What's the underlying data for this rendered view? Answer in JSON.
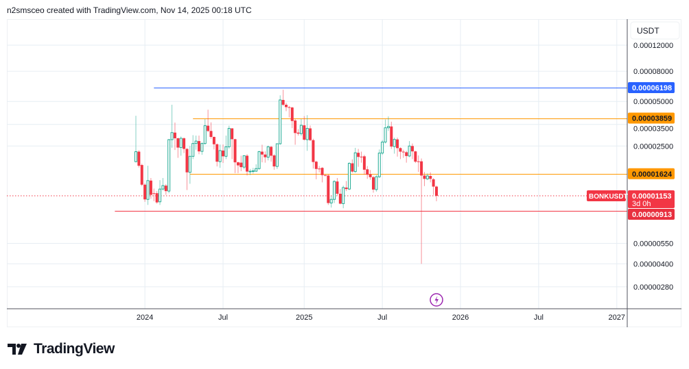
{
  "header": {
    "text": "n2smsceo created with TradingView.com, Nov 14, 2025 00:18 UTC"
  },
  "currency_button": "USDT",
  "symbol_label": "BONKUSDT",
  "countdown": "3d 0h",
  "logo_text": "TradingView",
  "colors": {
    "up": "#22ab94",
    "down": "#f23645",
    "blue": "#2962ff",
    "orange": "#ff9800",
    "red_line": "#f23645",
    "grid": "#e6edf3",
    "event": "#9c27b0"
  },
  "chart_data": {
    "type": "candlestick",
    "interval": "weekly",
    "scale": "log",
    "value_unit": "micro-USDT (x1e-6)",
    "ylim": [
      2.5,
      140
    ],
    "price_ticks": [
      "0.00012000",
      "0.00008000",
      "0.00005000",
      "0.00003500",
      "0.00002500",
      "0.00000550",
      "0.00000400",
      "0.00000280"
    ],
    "price_tick_values": [
      120,
      80,
      50,
      35,
      25,
      5.5,
      4.0,
      2.8
    ],
    "time_ticks": [
      "2024",
      "Jul",
      "2025",
      "Jul",
      "2026",
      "Jul",
      "2027"
    ],
    "time_tick_week_index": [
      3,
      29,
      56,
      82,
      108,
      134,
      160
    ],
    "levels": [
      {
        "label": "0.00006198",
        "value": 61.98,
        "color": "blue",
        "start_index": 6
      },
      {
        "label": "0.00003859",
        "value": 38.59,
        "color": "orange",
        "start_index": 19
      },
      {
        "label": "0.00001624",
        "value": 16.24,
        "color": "orange",
        "start_index": 18
      },
      {
        "label": "0.00000913",
        "value": 9.13,
        "color": "red_line",
        "start_index": -7
      }
    ],
    "last_price": {
      "label": "0.00001153",
      "value": 11.53
    },
    "candles": [
      [
        19.6,
        40.0,
        19.4,
        22.9
      ],
      [
        22.9,
        23.4,
        17.9,
        18.4
      ],
      [
        18.6,
        19.0,
        13.4,
        13.7
      ],
      [
        13.7,
        14.0,
        10.5,
        10.9
      ],
      [
        10.9,
        18.4,
        10.0,
        14.6
      ],
      [
        14.6,
        15.2,
        11.0,
        11.7
      ],
      [
        12.0,
        12.9,
        10.6,
        11.9
      ],
      [
        12.0,
        12.4,
        10.2,
        10.4
      ],
      [
        10.5,
        14.7,
        10.0,
        12.8
      ],
      [
        12.8,
        15.2,
        12.5,
        13.5
      ],
      [
        13.5,
        13.8,
        11.7,
        12.4
      ],
      [
        12.4,
        27.9,
        12.0,
        27.6
      ],
      [
        27.6,
        47.5,
        24.3,
        30.8
      ],
      [
        30.8,
        36.0,
        23.5,
        28.2
      ],
      [
        28.2,
        28.5,
        20.8,
        24.4
      ],
      [
        24.4,
        29.0,
        21.5,
        28.2
      ],
      [
        28.2,
        28.6,
        22.4,
        23.9
      ],
      [
        23.9,
        24.2,
        12.6,
        16.6
      ],
      [
        16.6,
        25.0,
        13.9,
        21.3
      ],
      [
        21.3,
        29.6,
        20.4,
        26.0
      ],
      [
        26.0,
        29.4,
        23.6,
        27.0
      ],
      [
        27.0,
        29.4,
        22.0,
        23.0
      ],
      [
        23.0,
        26.5,
        21.8,
        26.0
      ],
      [
        26.0,
        38.0,
        25.5,
        34.3
      ],
      [
        34.3,
        44.0,
        31.0,
        31.6
      ],
      [
        31.6,
        36.1,
        28.0,
        28.8
      ],
      [
        28.8,
        29.0,
        23.7,
        25.7
      ],
      [
        25.7,
        26.0,
        18.2,
        19.6
      ],
      [
        19.6,
        25.6,
        17.8,
        23.3
      ],
      [
        23.3,
        25.6,
        19.2,
        21.3
      ],
      [
        21.3,
        29.4,
        20.4,
        24.7
      ],
      [
        24.7,
        34.3,
        24.0,
        32.9
      ],
      [
        32.9,
        33.0,
        20.4,
        27.8
      ],
      [
        27.8,
        28.0,
        16.4,
        19.4
      ],
      [
        19.4,
        19.6,
        16.4,
        18.5
      ],
      [
        19.3,
        21.5,
        16.9,
        18.0
      ],
      [
        18.0,
        21.6,
        17.4,
        21.5
      ],
      [
        21.5,
        22.0,
        15.8,
        16.8
      ],
      [
        16.8,
        17.5,
        15.9,
        16.9
      ],
      [
        16.9,
        17.8,
        16.3,
        17.0
      ],
      [
        16.9,
        18.8,
        16.7,
        17.6
      ],
      [
        17.6,
        23.2,
        17.3,
        22.9
      ],
      [
        22.9,
        25.5,
        19.4,
        21.9
      ],
      [
        21.9,
        23.0,
        19.3,
        21.0
      ],
      [
        21.0,
        25.2,
        20.0,
        24.7
      ],
      [
        24.7,
        25.0,
        19.6,
        21.5
      ],
      [
        21.6,
        22.0,
        17.3,
        18.2
      ],
      [
        18.2,
        26.0,
        17.5,
        25.9
      ],
      [
        25.9,
        55.0,
        25.5,
        51.2
      ],
      [
        51.2,
        60.0,
        46.5,
        47.5
      ],
      [
        47.5,
        49.0,
        43.0,
        45.8
      ],
      [
        45.8,
        46.5,
        39.0,
        45.5
      ],
      [
        45.5,
        46.0,
        33.0,
        36.9
      ],
      [
        37.2,
        38.0,
        25.5,
        30.6
      ],
      [
        30.8,
        32.5,
        29.4,
        30.3
      ],
      [
        30.3,
        38.0,
        29.3,
        34.5
      ],
      [
        34.5,
        39.8,
        27.2,
        27.6
      ],
      [
        27.6,
        40.4,
        23.2,
        32.9
      ],
      [
        32.9,
        34.4,
        27.0,
        27.4
      ],
      [
        27.4,
        28.0,
        17.6,
        19.5
      ],
      [
        19.6,
        19.9,
        14.9,
        17.5
      ],
      [
        17.6,
        18.3,
        16.6,
        17.5
      ],
      [
        17.8,
        18.0,
        14.2,
        15.9
      ],
      [
        15.9,
        16.0,
        15.6,
        15.8
      ],
      [
        15.8,
        16.1,
        10.0,
        10.3
      ],
      [
        10.3,
        11.5,
        9.6,
        10.9
      ],
      [
        10.9,
        14.7,
        10.3,
        14.4
      ],
      [
        14.4,
        15.2,
        11.6,
        11.9
      ],
      [
        11.9,
        12.8,
        10.1,
        10.2
      ],
      [
        10.2,
        13.5,
        9.5,
        13.1
      ],
      [
        13.1,
        14.5,
        12.4,
        12.8
      ],
      [
        12.8,
        19.4,
        12.6,
        19.1
      ],
      [
        19.1,
        20.3,
        16.5,
        16.8
      ],
      [
        16.8,
        24.3,
        16.5,
        22.5
      ],
      [
        22.5,
        23.9,
        18.1,
        21.1
      ],
      [
        21.2,
        22.9,
        19.3,
        21.1
      ],
      [
        21.3,
        21.8,
        16.0,
        17.3
      ],
      [
        17.4,
        18.3,
        15.0,
        16.0
      ],
      [
        16.1,
        17.2,
        14.8,
        15.4
      ],
      [
        15.4,
        15.7,
        12.1,
        12.7
      ],
      [
        12.7,
        15.9,
        12.3,
        15.5
      ],
      [
        15.5,
        23.7,
        15.2,
        22.4
      ],
      [
        22.4,
        27.4,
        21.8,
        26.6
      ],
      [
        26.6,
        37.8,
        26.0,
        33.2
      ],
      [
        33.2,
        39.6,
        31.6,
        33.9
      ],
      [
        33.9,
        36.5,
        23.9,
        24.8
      ],
      [
        24.8,
        28.5,
        22.2,
        27.7
      ],
      [
        27.7,
        28.5,
        21.2,
        24.2
      ],
      [
        24.2,
        24.5,
        20.4,
        22.9
      ],
      [
        22.9,
        23.6,
        20.8,
        22.7
      ],
      [
        22.7,
        23.2,
        19.3,
        21.4
      ],
      [
        21.4,
        27.0,
        21.0,
        25.0
      ],
      [
        25.0,
        26.0,
        20.4,
        23.0
      ],
      [
        23.0,
        23.2,
        19.2,
        19.6
      ],
      [
        19.7,
        21.6,
        16.7,
        19.6
      ],
      [
        19.7,
        20.6,
        4.0,
        15.8
      ],
      [
        15.8,
        16.7,
        13.4,
        15.0
      ],
      [
        15.0,
        16.3,
        14.7,
        15.7
      ],
      [
        15.7,
        16.6,
        14.2,
        15.0
      ],
      [
        14.9,
        15.2,
        11.7,
        13.3
      ],
      [
        13.3,
        13.5,
        10.6,
        11.53
      ]
    ]
  }
}
